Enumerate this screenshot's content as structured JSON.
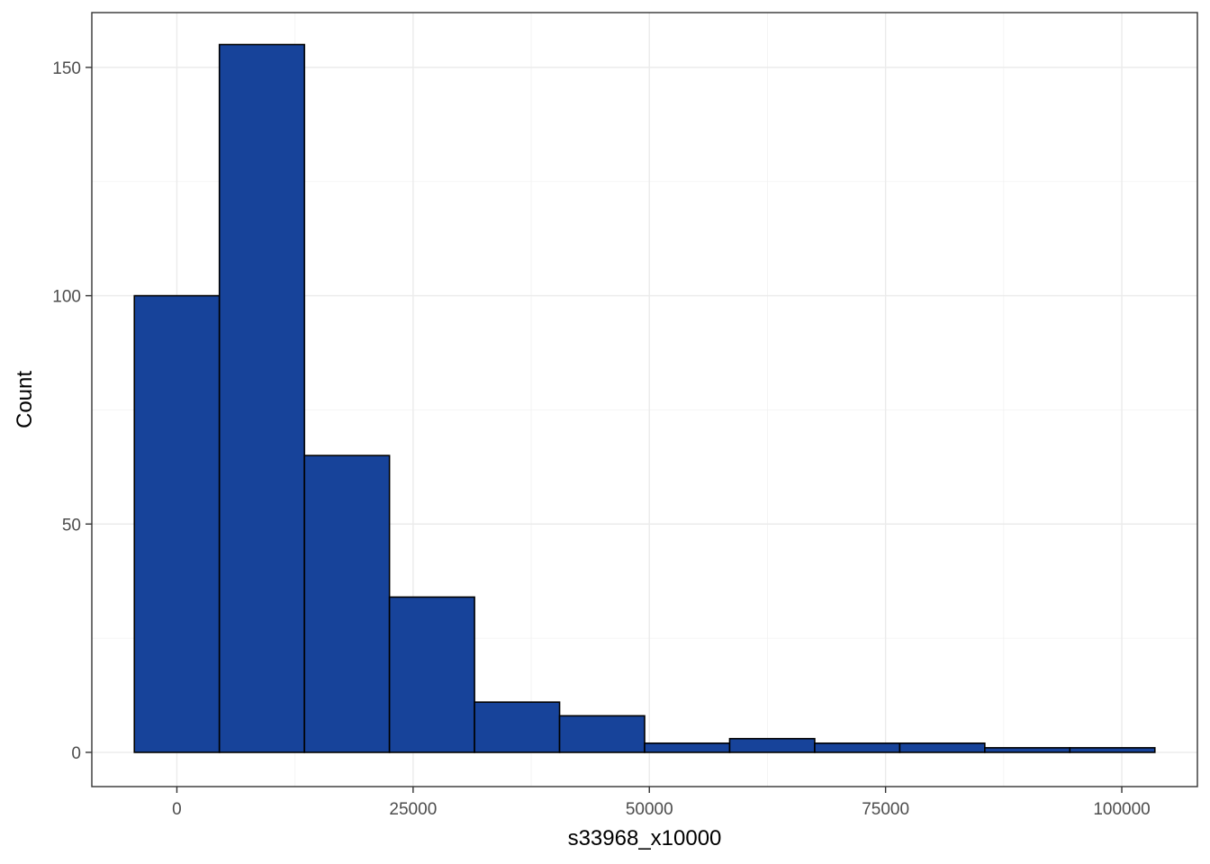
{
  "chart_data": {
    "type": "bar",
    "xlabel": "s33968_x10000",
    "ylabel": "Count",
    "xlim": [
      -9000,
      108000
    ],
    "ylim": [
      -7.5,
      162
    ],
    "x_ticks": [
      0,
      25000,
      50000,
      75000,
      100000
    ],
    "x_tick_labels": [
      "0",
      "25000",
      "50000",
      "75000",
      "100000"
    ],
    "y_ticks": [
      0,
      50,
      100,
      150
    ],
    "y_tick_labels": [
      "0",
      "50",
      "100",
      "150"
    ],
    "bins": [
      {
        "start": -4500,
        "end": 4500,
        "count": 100
      },
      {
        "start": 4500,
        "end": 13500,
        "count": 155
      },
      {
        "start": 13500,
        "end": 22500,
        "count": 65
      },
      {
        "start": 22500,
        "end": 31500,
        "count": 34
      },
      {
        "start": 31500,
        "end": 40500,
        "count": 11
      },
      {
        "start": 40500,
        "end": 49500,
        "count": 8
      },
      {
        "start": 49500,
        "end": 58500,
        "count": 2
      },
      {
        "start": 58500,
        "end": 67500,
        "count": 3
      },
      {
        "start": 67500,
        "end": 76500,
        "count": 2
      },
      {
        "start": 76500,
        "end": 85500,
        "count": 2
      },
      {
        "start": 85500,
        "end": 94500,
        "count": 1
      },
      {
        "start": 94500,
        "end": 103500,
        "count": 1
      }
    ],
    "grid": true,
    "colors": {
      "bar_fill": "#17439a",
      "bar_stroke": "#000000"
    }
  }
}
